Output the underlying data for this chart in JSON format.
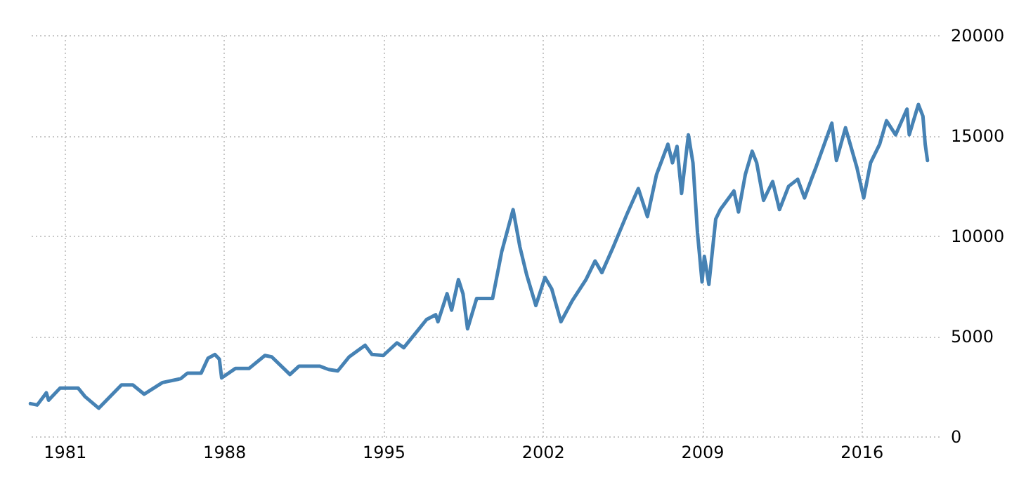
{
  "chart_data": {
    "type": "line",
    "x": [
      1979.5,
      1979.8,
      1980.2,
      1980.3,
      1980.8,
      1981.6,
      1981.9,
      1982.5,
      1983.5,
      1984.0,
      1984.5,
      1985.3,
      1986.1,
      1986.4,
      1987.0,
      1987.3,
      1987.6,
      1987.8,
      1987.9,
      1988.5,
      1989.1,
      1989.8,
      1990.1,
      1990.9,
      1991.3,
      1992.2,
      1992.6,
      1993.0,
      1993.5,
      1994.2,
      1994.5,
      1995.0,
      1995.6,
      1995.9,
      1996.4,
      1996.9,
      1997.3,
      1997.4,
      1997.8,
      1998.0,
      1998.3,
      1998.5,
      1998.7,
      1999.1,
      1999.8,
      2000.2,
      2000.7,
      2001.0,
      2001.3,
      2001.7,
      2002.1,
      2002.4,
      2002.8,
      2003.3,
      2003.9,
      2004.3,
      2004.6,
      2005.1,
      2005.7,
      2006.2,
      2006.6,
      2007.0,
      2007.5,
      2007.7,
      2007.9,
      2008.1,
      2008.4,
      2008.6,
      2008.8,
      2009.0,
      2009.1,
      2009.3,
      2009.6,
      2009.8,
      2010.4,
      2010.6,
      2010.9,
      2011.2,
      2011.4,
      2011.7,
      2012.1,
      2012.4,
      2012.8,
      2013.2,
      2013.5,
      2013.8,
      2014.0,
      2014.7,
      2014.9,
      2015.3,
      2015.8,
      2016.1,
      2016.4,
      2016.8,
      2017.1,
      2017.5,
      2018.0,
      2018.1,
      2018.5,
      2018.7,
      2018.8,
      2018.9
    ],
    "series": [
      {
        "color": "#4682b4",
        "values": [
          1630,
          1560,
          2170,
          1800,
          2400,
          2400,
          1980,
          1400,
          2560,
          2560,
          2100,
          2680,
          2870,
          3150,
          3150,
          3890,
          4080,
          3850,
          2910,
          3380,
          3380,
          4030,
          3960,
          3080,
          3500,
          3500,
          3330,
          3260,
          3960,
          4540,
          4080,
          4030,
          4660,
          4420,
          5120,
          5820,
          6060,
          5710,
          7110,
          6290,
          7810,
          7110,
          5360,
          6870,
          6870,
          9200,
          11300,
          9440,
          8040,
          6520,
          7920,
          7340,
          5710,
          6760,
          7810,
          8740,
          8160,
          9440,
          11070,
          12350,
          10950,
          13050,
          14560,
          13630,
          14450,
          12110,
          15030,
          13630,
          10140,
          7690,
          8970,
          7570,
          10830,
          11300,
          12230,
          11180,
          13050,
          14210,
          13630,
          11760,
          12700,
          11300,
          12460,
          12810,
          11880,
          12810,
          13400,
          15610,
          13750,
          15380,
          13400,
          11880,
          13630,
          14560,
          15730,
          15030,
          16310,
          15030,
          16540,
          15960,
          14560,
          13750
        ]
      }
    ],
    "xlim": [
      1979.4,
      2019.4
    ],
    "xticks": [
      1981,
      1988,
      1995,
      2002,
      2009,
      2016
    ],
    "ylim": [
      0,
      20000
    ],
    "yticks": [
      0,
      5000,
      10000,
      15000,
      20000
    ],
    "grid": true,
    "legend": false,
    "marker": "none",
    "line_style": "solid"
  }
}
